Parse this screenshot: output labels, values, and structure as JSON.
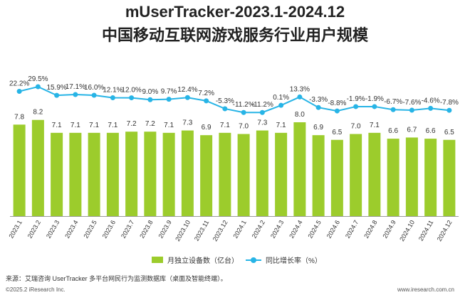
{
  "title_line1": "mUserTracker-2023.1-2024.12",
  "title_line2": "中国移动互联网游戏服务行业用户规模",
  "chart_data": {
    "type": "bar+line",
    "categories": [
      "2023.1",
      "2023.2",
      "2023.3",
      "2023.4",
      "2023.5",
      "2023.6",
      "2023.7",
      "2023.8",
      "2023.9",
      "2023.10",
      "2023.11",
      "2023.12",
      "2024.1",
      "2024.2",
      "2024.3",
      "2024.4",
      "2024.5",
      "2024.6",
      "2024.7",
      "2024.8",
      "2024.9",
      "2024.10",
      "2024.11",
      "2024.12"
    ],
    "series": [
      {
        "name": "月独立设备数（亿台）",
        "type": "bar",
        "color": "#9ccc2c",
        "values": [
          7.8,
          8.2,
          7.1,
          7.1,
          7.1,
          7.1,
          7.2,
          7.2,
          7.1,
          7.3,
          6.9,
          7.1,
          7.0,
          7.3,
          7.1,
          8.0,
          6.9,
          6.5,
          7.0,
          7.1,
          6.6,
          6.7,
          6.6,
          6.5
        ],
        "labels": [
          "7.8",
          "8.2",
          "7.1",
          "7.1",
          "7.1",
          "7.1",
          "7.2",
          "7.2",
          "7.1",
          "7.3",
          "6.9",
          "7.1",
          "7.0",
          "7.3",
          "7.1",
          "8.0",
          "6.9",
          "6.5",
          "7.0",
          "7.1",
          "6.6",
          "6.7",
          "6.6",
          "6.5"
        ]
      },
      {
        "name": "同比增长率（%）",
        "type": "line",
        "color": "#27b4e6",
        "values": [
          22.2,
          29.5,
          15.9,
          17.1,
          16.0,
          12.1,
          12.0,
          9.0,
          9.7,
          12.4,
          7.2,
          -5.3,
          -11.2,
          -11.2,
          0.1,
          13.3,
          -3.3,
          -8.8,
          -1.9,
          -1.9,
          -6.7,
          -7.6,
          -4.6,
          -7.8
        ],
        "labels": [
          "22.2%",
          "29.5%",
          "15.9%",
          "17.1%",
          "16.0%",
          "12.1%",
          "12.0%",
          "9.0%",
          "9.7%",
          "12.4%",
          "7.2%",
          "-5.3%",
          "-11.2%",
          "-11.2%",
          "0.1%",
          "13.3%",
          "-3.3%",
          "-8.8%",
          "-1.9%",
          "-1.9%",
          "-6.7%",
          "-7.6%",
          "-4.6%",
          "-7.8%"
        ]
      }
    ],
    "bar_axis": {
      "min": 0,
      "max": 10
    },
    "line_axis": {
      "min": -150,
      "max": 35
    },
    "grid": false,
    "legend_position": "bottom"
  },
  "footer": {
    "source": "来源：艾瑞咨询 UserTracker 多平台网民行为监测数据库（桌面及智能终端）。",
    "copyright": "©2025.2 iResearch Inc.",
    "site": "www.iresearch.com.cn"
  }
}
